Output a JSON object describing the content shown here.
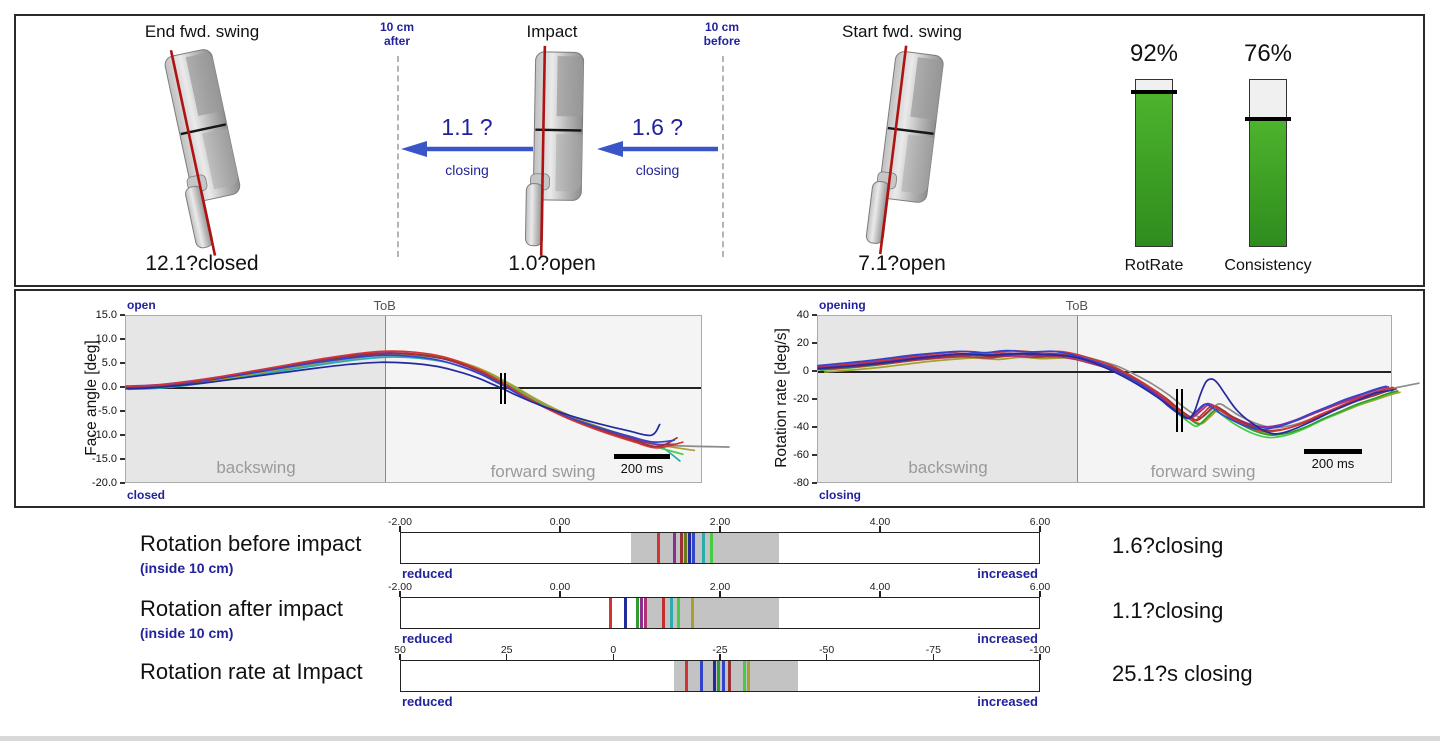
{
  "top_panel": {
    "putters": [
      {
        "label": "End fwd. swing",
        "value": "12.1?closed",
        "tilt": -12.1
      },
      {
        "label": "Impact",
        "value": "1.0?open",
        "tilt": 1.0
      },
      {
        "label": "Start fwd. swing",
        "value": "7.1?open",
        "tilt": 7.1
      }
    ],
    "distance_markers": [
      {
        "line1": "10 cm",
        "line2": "after"
      },
      {
        "line1": "10 cm",
        "line2": "before"
      }
    ],
    "arrows": [
      {
        "value": "1.1 ?",
        "caption": "closing"
      },
      {
        "value": "1.6 ?",
        "caption": "closing"
      }
    ],
    "gauges": [
      {
        "percent": 92,
        "percent_label": "92%",
        "name": "RotRate"
      },
      {
        "percent": 76,
        "percent_label": "76%",
        "name": "Consistency"
      }
    ]
  },
  "chart_data": [
    {
      "type": "line",
      "ylabel": "Face angle [deg]",
      "top_label": "open",
      "bottom_label": "closed",
      "tob_label": "ToB",
      "region_left": "backswing",
      "region_right": "forward swing",
      "scalebar_label": "200 ms",
      "ymin": -20,
      "ymax": 15,
      "yticks": [
        {
          "v": 15,
          "label": "15.0"
        },
        {
          "v": 10,
          "label": "10.0"
        },
        {
          "v": 5,
          "label": "5.0"
        },
        {
          "v": 0,
          "label": "0.0"
        },
        {
          "v": -5,
          "label": "-5.0"
        },
        {
          "v": -10,
          "label": "-10.0"
        },
        {
          "v": -15,
          "label": "-15.0"
        },
        {
          "v": -20,
          "label": "-20.0"
        }
      ],
      "tob_x": 0.45,
      "impact_marker": {
        "x": 0.653,
        "v1": 3.2,
        "v2": -3.4
      },
      "base_curve": [
        [
          0,
          0.1
        ],
        [
          0.05,
          0.3
        ],
        [
          0.1,
          0.9
        ],
        [
          0.16,
          1.9
        ],
        [
          0.22,
          3.1
        ],
        [
          0.28,
          4.3
        ],
        [
          0.34,
          5.5
        ],
        [
          0.4,
          6.5
        ],
        [
          0.45,
          7.0
        ],
        [
          0.5,
          6.8
        ],
        [
          0.55,
          5.9
        ],
        [
          0.59,
          4.4
        ],
        [
          0.62,
          2.9
        ],
        [
          0.645,
          1.3
        ],
        [
          0.665,
          0.0
        ],
        [
          0.69,
          -1.8
        ],
        [
          0.73,
          -4.3
        ],
        [
          0.78,
          -6.9
        ],
        [
          0.83,
          -9.0
        ],
        [
          0.88,
          -10.8
        ],
        [
          0.92,
          -12.0
        ]
      ],
      "series": [
        {
          "color": "#8c8c8c",
          "amp": 0.99,
          "yoff": 0,
          "xoff": 0.01,
          "endx": 1.045,
          "endy": -12.3
        },
        {
          "color": "#2aacac",
          "amp": 0.97,
          "yoff": -0.35,
          "xoff": 0.004,
          "endx": 0.96,
          "endy": -15.2
        },
        {
          "color": "#44cc44",
          "amp": 1.04,
          "yoff": -0.1,
          "xoff": 0.008,
          "endx": 0.965,
          "endy": -13.8
        },
        {
          "color": "#a8a02a",
          "amp": 1.01,
          "yoff": 0.1,
          "xoff": 0.012,
          "endx": 0.985,
          "endy": -13.0
        },
        {
          "color": "#8a3090",
          "amp": 1.0,
          "yoff": 0.3,
          "xoff": -0.004,
          "endx": 0.95,
          "endy": -11.7
        },
        {
          "color": "#993333",
          "amp": 1.02,
          "yoff": 0.05,
          "xoff": 0.002,
          "endx": 0.955,
          "endy": -10.4
        },
        {
          "color": "#3344cc",
          "amp": 0.95,
          "yoff": 0.15,
          "xoff": -0.006,
          "endx": 0.95,
          "endy": -10.9
        },
        {
          "color": "#d23434",
          "amp": 1.06,
          "yoff": 0.25,
          "xoff": 0,
          "endx": 0.965,
          "endy": -11.3
        },
        {
          "color": "#232a9e",
          "amp": 0.8,
          "yoff": -0.25,
          "xoff": -0.01,
          "endx": 0.925,
          "endy": -7.6
        }
      ]
    },
    {
      "type": "line",
      "ylabel": "Rotation rate [deg/s]",
      "top_label": "opening",
      "bottom_label": "closing",
      "tob_label": "ToB",
      "region_left": "backswing",
      "region_right": "forward swing",
      "scalebar_label": "200 ms",
      "ymin": -80,
      "ymax": 40,
      "yticks": [
        {
          "v": 40,
          "label": "40"
        },
        {
          "v": 20,
          "label": "20"
        },
        {
          "v": 0,
          "label": "0"
        },
        {
          "v": -20,
          "label": "-20"
        },
        {
          "v": -40,
          "label": "-40"
        },
        {
          "v": -60,
          "label": "-60"
        },
        {
          "v": -80,
          "label": "-80"
        }
      ],
      "tob_x": 0.452,
      "impact_marker": {
        "x": 0.628,
        "v1": -12,
        "v2": -43
      },
      "base_curve": [
        [
          0,
          3
        ],
        [
          0.05,
          4.5
        ],
        [
          0.1,
          6.5
        ],
        [
          0.14,
          8.5
        ],
        [
          0.18,
          10.5
        ],
        [
          0.22,
          12
        ],
        [
          0.26,
          13
        ],
        [
          0.3,
          12
        ],
        [
          0.34,
          13.5
        ],
        [
          0.38,
          12.5
        ],
        [
          0.42,
          13
        ],
        [
          0.45,
          11
        ],
        [
          0.48,
          7.5
        ],
        [
          0.51,
          3.5
        ],
        [
          0.54,
          -2.5
        ],
        [
          0.57,
          -9.5
        ],
        [
          0.6,
          -18
        ],
        [
          0.62,
          -25
        ],
        [
          0.64,
          -31
        ],
        [
          0.655,
          -34
        ],
        [
          0.67,
          -29
        ],
        [
          0.685,
          -24
        ],
        [
          0.7,
          -27
        ],
        [
          0.72,
          -32.5
        ],
        [
          0.75,
          -38.5
        ],
        [
          0.78,
          -41.5
        ],
        [
          0.81,
          -40
        ],
        [
          0.84,
          -36
        ],
        [
          0.87,
          -30.5
        ],
        [
          0.9,
          -25.5
        ],
        [
          0.93,
          -20.5
        ],
        [
          0.96,
          -16.5
        ],
        [
          0.985,
          -13
        ],
        [
          1.0,
          -11.5
        ]
      ],
      "series": [
        {
          "color": "#8c8c8c",
          "amp": 0.97,
          "yoff": 0.5,
          "xoff": 0.012,
          "endx": 1.045,
          "endy": -8
        },
        {
          "color": "#a8a02a",
          "amp": 1.0,
          "yoff": -3,
          "xoff": 0.012
        },
        {
          "color": "#44cc44",
          "amp": 1.08,
          "yoff": -2,
          "xoff": 0.004
        },
        {
          "color": "#2f9e2f",
          "amp": 1.05,
          "yoff": -1.5,
          "xoff": 0.008
        },
        {
          "color": "#b03070",
          "amp": 0.92,
          "yoff": -1,
          "xoff": -0.004
        },
        {
          "color": "#8a3090",
          "amp": 0.96,
          "yoff": 0.5,
          "xoff": -0.008
        },
        {
          "color": "#993333",
          "amp": 0.99,
          "yoff": -0.8,
          "xoff": 0.005
        },
        {
          "color": "#d23434",
          "amp": 1.05,
          "yoff": 1,
          "xoff": 0
        },
        {
          "color": "#3344cc",
          "amp": 1.02,
          "yoff": 1.5,
          "xoff": -0.012
        },
        {
          "color": "#232a9e",
          "points": [
            [
              0,
              2.5
            ],
            [
              0.05,
              4
            ],
            [
              0.1,
              6
            ],
            [
              0.15,
              8.5
            ],
            [
              0.2,
              11
            ],
            [
              0.25,
              13
            ],
            [
              0.3,
              12
            ],
            [
              0.35,
              13
            ],
            [
              0.4,
              12.5
            ],
            [
              0.44,
              11
            ],
            [
              0.47,
              8
            ],
            [
              0.5,
              3
            ],
            [
              0.53,
              -3
            ],
            [
              0.56,
              -10
            ],
            [
              0.59,
              -18
            ],
            [
              0.61,
              -24
            ],
            [
              0.63,
              -30
            ],
            [
              0.645,
              -33
            ],
            [
              0.655,
              -28
            ],
            [
              0.665,
              -16
            ],
            [
              0.675,
              -7
            ],
            [
              0.685,
              -5
            ],
            [
              0.695,
              -8
            ],
            [
              0.71,
              -17
            ],
            [
              0.73,
              -28
            ],
            [
              0.76,
              -38
            ],
            [
              0.79,
              -44
            ],
            [
              0.82,
              -42
            ],
            [
              0.86,
              -35
            ],
            [
              0.9,
              -27
            ],
            [
              0.94,
              -20
            ],
            [
              0.97,
              -15
            ],
            [
              1.0,
              -13
            ]
          ]
        }
      ]
    }
  ],
  "rows": [
    {
      "title": "Rotation before impact",
      "subtitle": "(inside 10 cm)",
      "value": "1.6?closing",
      "min": -2,
      "max": 6,
      "ticks": [
        {
          "v": -2,
          "label": "-2.00"
        },
        {
          "v": 0,
          "label": "0.00"
        },
        {
          "v": 2,
          "label": "2.00"
        },
        {
          "v": 4,
          "label": "4.00"
        },
        {
          "v": 6,
          "label": "6.00"
        }
      ],
      "band": [
        0.88,
        2.72
      ],
      "markers": [
        {
          "v": 1.22,
          "c": "#d23434"
        },
        {
          "v": 1.42,
          "c": "#8a3090"
        },
        {
          "v": 1.5,
          "c": "#993333"
        },
        {
          "v": 1.55,
          "c": "#6a7a1a"
        },
        {
          "v": 1.6,
          "c": "#232a9e"
        },
        {
          "v": 1.66,
          "c": "#3344cc"
        },
        {
          "v": 1.78,
          "c": "#2aacac"
        },
        {
          "v": 1.88,
          "c": "#44cc44"
        }
      ],
      "left_label": "reduced",
      "right_label": "increased"
    },
    {
      "title": "Rotation after impact",
      "subtitle": "(inside 10 cm)",
      "value": "1.1?closing",
      "min": -2,
      "max": 6,
      "ticks": [
        {
          "v": -2,
          "label": "-2.00"
        },
        {
          "v": 0,
          "label": "0.00"
        },
        {
          "v": 2,
          "label": "2.00"
        },
        {
          "v": 4,
          "label": "4.00"
        },
        {
          "v": 6,
          "label": "6.00"
        }
      ],
      "band": [
        1.05,
        2.72
      ],
      "markers": [
        {
          "v": 0.62,
          "c": "#d23434"
        },
        {
          "v": 0.8,
          "c": "#232a9e"
        },
        {
          "v": 0.95,
          "c": "#2f9e2f"
        },
        {
          "v": 1.0,
          "c": "#8a3090"
        },
        {
          "v": 1.05,
          "c": "#b03070"
        },
        {
          "v": 1.28,
          "c": "#c03030"
        },
        {
          "v": 1.38,
          "c": "#2aacac"
        },
        {
          "v": 1.47,
          "c": "#44cc44"
        },
        {
          "v": 1.64,
          "c": "#a8a02a"
        }
      ],
      "left_label": "reduced",
      "right_label": "increased"
    },
    {
      "title": "Rotation rate at Impact",
      "subtitle": "",
      "value": "25.1?s closing",
      "min": 50,
      "max": -100,
      "ticks": [
        {
          "v": 50,
          "label": "50"
        },
        {
          "v": 25,
          "label": "25"
        },
        {
          "v": 0,
          "label": "0"
        },
        {
          "v": -25,
          "label": "-25"
        },
        {
          "v": -50,
          "label": "-50"
        },
        {
          "v": -75,
          "label": "-75"
        },
        {
          "v": -100,
          "label": "-100"
        }
      ],
      "band": [
        -14,
        -43
      ],
      "markers": [
        {
          "v": -17,
          "c": "#d23434"
        },
        {
          "v": -20.5,
          "c": "#3344cc"
        },
        {
          "v": -23.5,
          "c": "#232a9e"
        },
        {
          "v": -24.5,
          "c": "#2f9e2f"
        },
        {
          "v": -25.5,
          "c": "#3344cc"
        },
        {
          "v": -27,
          "c": "#993333"
        },
        {
          "v": -30.5,
          "c": "#44cc44"
        },
        {
          "v": -31.5,
          "c": "#a8a02a"
        }
      ],
      "left_label": "reduced",
      "right_label": "increased"
    }
  ],
  "colors": {
    "navy": "#22229b",
    "arrow_blue": "#3a55c8",
    "gauge_green_light": "#4db42c",
    "gauge_green_dark": "#2e8c1e",
    "band_gray": "#c3c3c3",
    "backswing_bg": "#e6e6e6",
    "forward_bg": "#f4f4f4",
    "red_line": "#b01212"
  }
}
